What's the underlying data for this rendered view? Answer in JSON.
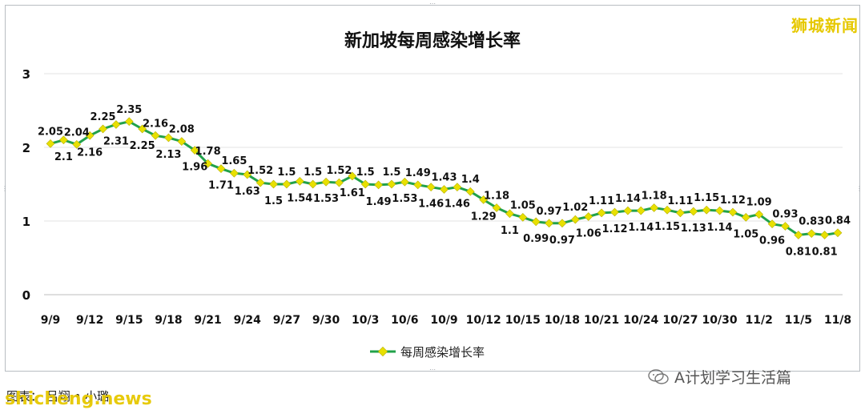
{
  "brand": "狮城新闻",
  "credit": "图表：  吕翔 • 小璐",
  "site": "shicheng.news",
  "wechat": "A计划学习生活篇",
  "colors": {
    "line": "#21a24a",
    "marker": "#e8e000",
    "grid": "#e3e3e3",
    "text": "#111111"
  },
  "chart_data": {
    "type": "line",
    "title": "新加坡每周感染增长率",
    "ylim": [
      0,
      3
    ],
    "yticks": [
      "0",
      "1",
      "2",
      "3"
    ],
    "xticks": [
      "9/9",
      "9/12",
      "9/15",
      "9/18",
      "9/21",
      "9/24",
      "9/27",
      "9/30",
      "10/3",
      "10/6",
      "10/9",
      "10/12",
      "10/15",
      "10/18",
      "10/21",
      "10/24",
      "10/27",
      "10/30",
      "11/2",
      "11/5",
      "11/8"
    ],
    "legend": "top-bottom",
    "series": [
      {
        "name": "每周感染增长率",
        "values": [
          2.05,
          2.1,
          2.04,
          2.16,
          2.25,
          2.31,
          2.35,
          2.25,
          2.16,
          2.13,
          2.08,
          1.96,
          1.78,
          1.71,
          1.65,
          1.63,
          1.52,
          1.5,
          1.5,
          1.54,
          1.5,
          1.53,
          1.52,
          1.61,
          1.5,
          1.49,
          1.5,
          1.53,
          1.49,
          1.46,
          1.43,
          1.46,
          1.4,
          1.29,
          1.18,
          1.1,
          1.05,
          0.99,
          0.97,
          0.97,
          1.02,
          1.06,
          1.11,
          1.12,
          1.14,
          1.14,
          1.18,
          1.15,
          1.11,
          1.13,
          1.15,
          1.14,
          1.12,
          1.05,
          1.09,
          0.96,
          0.93,
          0.81,
          0.83,
          0.81,
          0.84
        ]
      }
    ]
  }
}
